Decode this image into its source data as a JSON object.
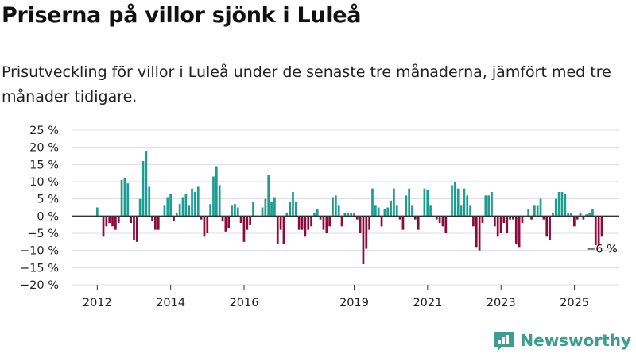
{
  "header": {
    "title": "Priserna på villor sjönk i Luleå",
    "subtitle": "Prisutveckling för villor i Luleå under de senaste tre månaderna, jämfört med tre månader tidigare."
  },
  "brand": {
    "name": "Newsworthy",
    "icon": "newsworthy-logo-icon",
    "color": "#3d9e8f"
  },
  "colors": {
    "positive": "#1a9e94",
    "negative": "#8e0a3a",
    "grid": "#dddddd",
    "zero_line": "#333333"
  },
  "chart_data": {
    "type": "bar",
    "title": "Priserna på villor sjönk i Luleå",
    "subtitle": "Prisutveckling för villor i Luleå under de senaste tre månaderna, jämfört med tre månader tidigare.",
    "xlabel": "",
    "ylabel": "",
    "x_ticks": [
      "2012",
      "2014",
      "2016",
      "2019",
      "2021",
      "2023",
      "2025"
    ],
    "x_tick_positions": [
      2012.0,
      2014.0,
      2016.0,
      2019.0,
      2021.0,
      2023.0,
      2025.0
    ],
    "xlim": [
      2011.3,
      2026.2
    ],
    "y_ticks": [
      "25 %",
      "20 %",
      "15 %",
      "10 %",
      "5 %",
      "0 %",
      "−5 %",
      "−10 %",
      "−15 %",
      "−20 %"
    ],
    "y_tick_values": [
      25,
      20,
      15,
      10,
      5,
      0,
      -5,
      -10,
      -15,
      -20
    ],
    "ylim": [
      -20,
      25
    ],
    "grid": true,
    "grid_axis": "y",
    "annotation": {
      "text": "−6 %",
      "for_last_value": -6
    },
    "bar_width_years": 0.059,
    "start_year": 2012.0,
    "step_years": 0.0833,
    "values": [
      2.5,
      0,
      -6,
      -3,
      -2,
      -3,
      -4,
      -2,
      10.5,
      11,
      9.5,
      -2,
      -7,
      -7.5,
      5,
      16,
      19,
      8.5,
      -1.5,
      -4,
      -4,
      0,
      3,
      5.5,
      6.5,
      -1.5,
      1,
      3.5,
      5.5,
      6.5,
      3,
      8,
      7,
      8.5,
      -1,
      -6,
      -5,
      3.5,
      11.5,
      14.5,
      9,
      -1.5,
      -4.5,
      -3.5,
      3,
      3.5,
      2.5,
      -2,
      -7.5,
      -4,
      -2.5,
      4,
      0,
      0,
      2.5,
      5,
      12,
      4,
      5.5,
      -8,
      -4,
      -8,
      1,
      4,
      7,
      4,
      -4,
      -4,
      -6,
      -4,
      -3,
      1,
      2,
      -1,
      -4,
      -5,
      -3,
      5.5,
      6,
      3,
      -3,
      1,
      1,
      1,
      1,
      -1,
      -5,
      -14,
      -9.5,
      -4,
      8,
      3,
      2.5,
      -3,
      2,
      2.5,
      4.5,
      8,
      3,
      -1,
      -4,
      6,
      8,
      3,
      -1,
      -4,
      0,
      8,
      7.5,
      3,
      0,
      -1,
      -2,
      -3,
      -5,
      0,
      9,
      10,
      8,
      3,
      8,
      6,
      3,
      -3,
      -9,
      -10,
      -2,
      6,
      6,
      7,
      -3,
      -6,
      -5,
      -2,
      -5,
      -1,
      -1,
      -8,
      -9,
      -2,
      0,
      2,
      -1,
      3,
      3,
      5,
      -1,
      -6,
      -7,
      1,
      5,
      7,
      7,
      6.5,
      1,
      1,
      -3,
      -1,
      1,
      -1,
      0.5,
      1,
      2,
      -8.5,
      -8.5,
      -6
    ]
  }
}
